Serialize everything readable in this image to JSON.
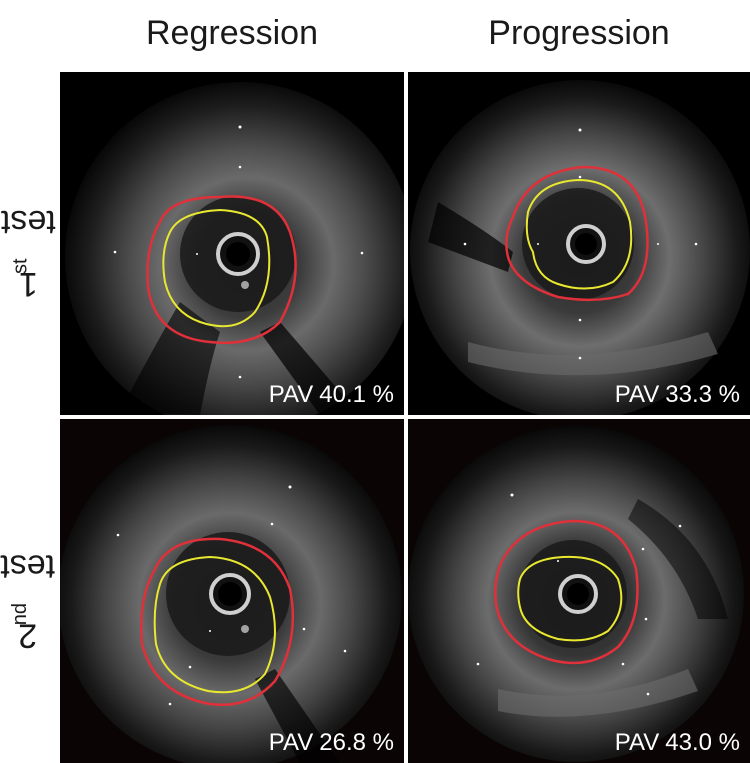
{
  "columns": [
    {
      "title": "Regression"
    },
    {
      "title": "Progression"
    }
  ],
  "rows": [
    {
      "label_number": "1",
      "label_suffix": "st",
      "label_word": "test"
    },
    {
      "label_number": "2",
      "label_suffix": "nd",
      "label_word": "test"
    }
  ],
  "panels": {
    "regression_1st": {
      "pav_label": "PAV",
      "pav_value": "40.1",
      "pav_unit": "%"
    },
    "progression_1st": {
      "pav_label": "PAV",
      "pav_value": "33.3",
      "pav_unit": "%"
    },
    "regression_2nd": {
      "pav_label": "PAV",
      "pav_value": "26.8",
      "pav_unit": "%"
    },
    "progression_2nd": {
      "pav_label": "PAV",
      "pav_value": "43.0",
      "pav_unit": "%"
    }
  },
  "colors": {
    "outer_contour": "#e0303a",
    "inner_contour": "#e8e830",
    "background": "#000000"
  }
}
